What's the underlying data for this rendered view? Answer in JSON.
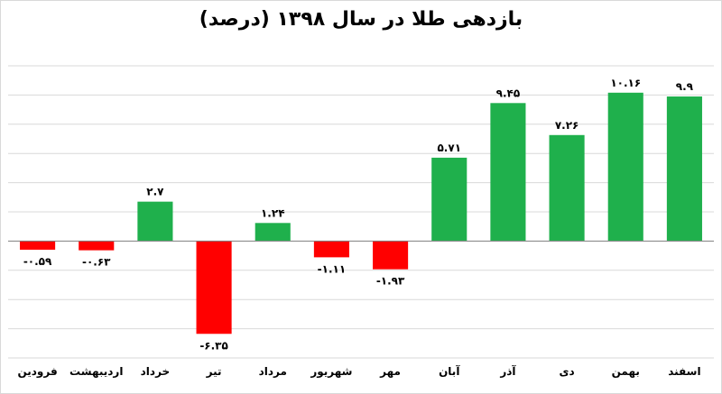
{
  "chart_data": {
    "type": "bar",
    "title": "بازدهی طلا در سال ۱۳۹۸ (درصد)",
    "xlabel": "",
    "ylabel": "",
    "categories": [
      "فرودین",
      "اردیبهشت",
      "خرداد",
      "تیر",
      "مرداد",
      "شهریور",
      "مهر",
      "آبان",
      "آذر",
      "دی",
      "بهمن",
      "اسفند"
    ],
    "values": [
      -0.59,
      -0.63,
      2.7,
      -6.35,
      1.24,
      -1.11,
      -1.93,
      5.71,
      9.45,
      7.26,
      10.16,
      9.9
    ],
    "data_labels": [
      "-۰.۵۹",
      "-۰.۶۳",
      "۲.۷",
      "-۶.۳۵",
      "۱.۲۴",
      "-۱.۱۱",
      "-۱.۹۳",
      "۵.۷۱",
      "۹.۴۵",
      "۷.۲۶",
      "۱۰.۱۶",
      "۹.۹"
    ],
    "ylim": [
      -8,
      12
    ],
    "grid": true,
    "legend": "none",
    "colors": {
      "positive": "#1fb04c",
      "negative": "#ff0000",
      "axis": "#7f7f7f",
      "grid": "#d9d9d9"
    }
  }
}
